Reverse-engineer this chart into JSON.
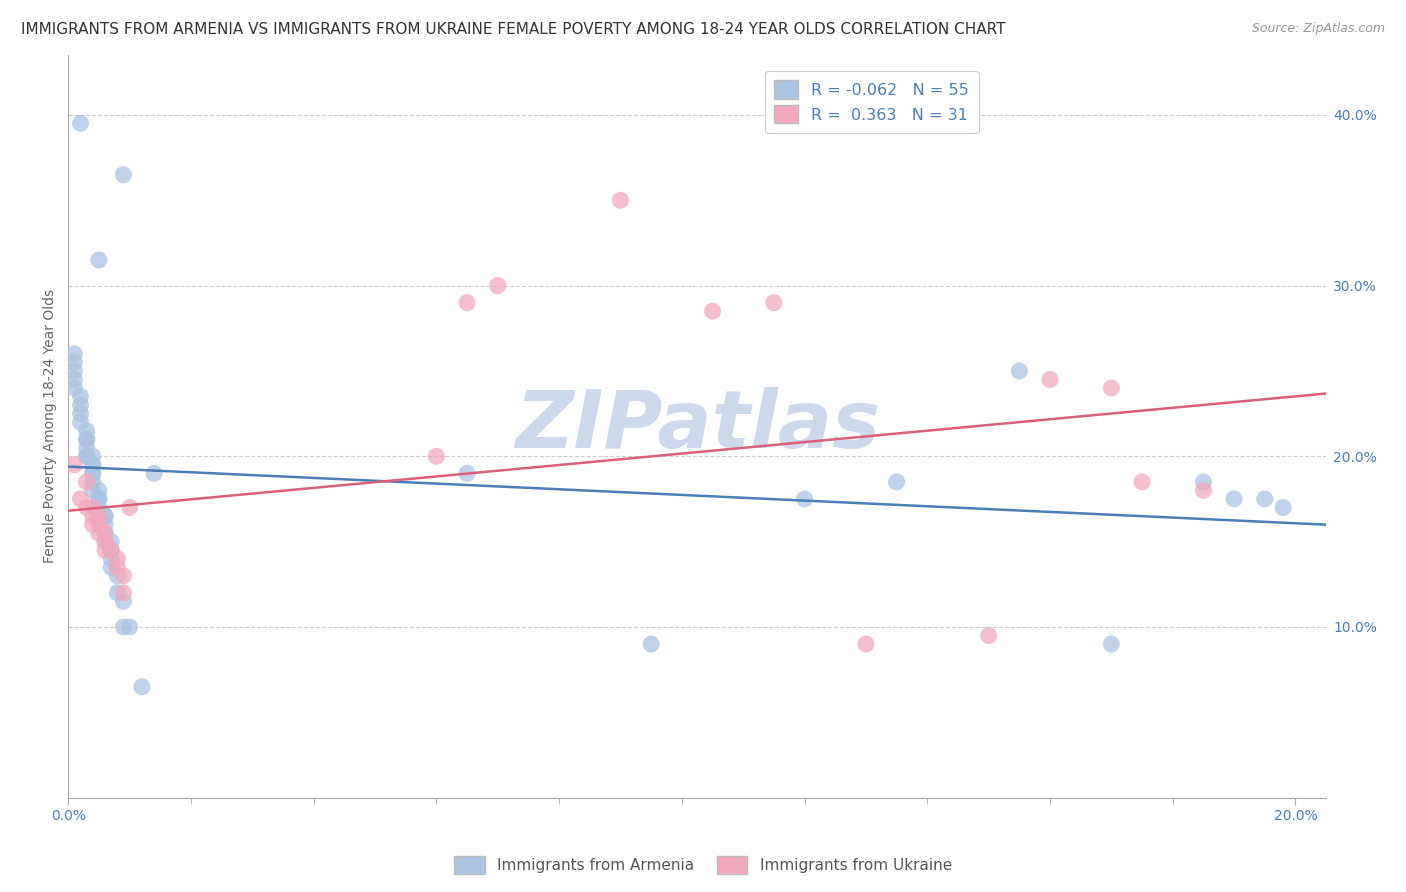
{
  "title": "IMMIGRANTS FROM ARMENIA VS IMMIGRANTS FROM UKRAINE FEMALE POVERTY AMONG 18-24 YEAR OLDS CORRELATION CHART",
  "source": "Source: ZipAtlas.com",
  "ylabel": "Female Poverty Among 18-24 Year Olds",
  "xlim": [
    0.0,
    0.205
  ],
  "ylim": [
    0.0,
    0.435
  ],
  "x_ticks": [
    0.0,
    0.2
  ],
  "x_tick_labels": [
    "0.0%",
    "20.0%"
  ],
  "y_ticks_right": [
    0.1,
    0.2,
    0.3,
    0.4
  ],
  "y_tick_labels_right": [
    "10.0%",
    "20.0%",
    "30.0%",
    "40.0%"
  ],
  "legend_labels": [
    "Immigrants from Armenia",
    "Immigrants from Ukraine"
  ],
  "color_armenia": "#aac4e2",
  "color_ukraine": "#f2a8bc",
  "color_line_armenia": "#4a7eb5",
  "color_line_ukraine": "#d9607a",
  "R_armenia": -0.062,
  "N_armenia": 55,
  "R_ukraine": 0.363,
  "N_ukraine": 31,
  "armenia_x": [
    0.002,
    0.009,
    0.005,
    0.001,
    0.001,
    0.001,
    0.001,
    0.001,
    0.002,
    0.002,
    0.002,
    0.002,
    0.003,
    0.003,
    0.003,
    0.003,
    0.003,
    0.003,
    0.004,
    0.004,
    0.004,
    0.004,
    0.004,
    0.004,
    0.004,
    0.005,
    0.005,
    0.005,
    0.005,
    0.006,
    0.006,
    0.006,
    0.006,
    0.006,
    0.007,
    0.007,
    0.007,
    0.007,
    0.008,
    0.008,
    0.009,
    0.009,
    0.01,
    0.012,
    0.014,
    0.065,
    0.095,
    0.12,
    0.135,
    0.155,
    0.17,
    0.185,
    0.19,
    0.195,
    0.198
  ],
  "armenia_y": [
    0.395,
    0.365,
    0.315,
    0.26,
    0.255,
    0.25,
    0.245,
    0.24,
    0.235,
    0.23,
    0.225,
    0.22,
    0.215,
    0.21,
    0.21,
    0.205,
    0.2,
    0.2,
    0.2,
    0.195,
    0.195,
    0.19,
    0.19,
    0.185,
    0.18,
    0.18,
    0.175,
    0.175,
    0.17,
    0.165,
    0.165,
    0.16,
    0.155,
    0.15,
    0.15,
    0.145,
    0.14,
    0.135,
    0.13,
    0.12,
    0.115,
    0.1,
    0.1,
    0.065,
    0.19,
    0.19,
    0.09,
    0.175,
    0.185,
    0.25,
    0.09,
    0.185,
    0.175,
    0.175,
    0.17
  ],
  "ukraine_x": [
    0.001,
    0.002,
    0.003,
    0.003,
    0.004,
    0.004,
    0.004,
    0.005,
    0.005,
    0.005,
    0.006,
    0.006,
    0.006,
    0.007,
    0.008,
    0.008,
    0.009,
    0.009,
    0.01,
    0.06,
    0.065,
    0.07,
    0.09,
    0.105,
    0.115,
    0.13,
    0.15,
    0.16,
    0.17,
    0.175,
    0.185
  ],
  "ukraine_y": [
    0.195,
    0.175,
    0.185,
    0.17,
    0.17,
    0.165,
    0.16,
    0.165,
    0.16,
    0.155,
    0.155,
    0.15,
    0.145,
    0.145,
    0.14,
    0.135,
    0.13,
    0.12,
    0.17,
    0.2,
    0.29,
    0.3,
    0.35,
    0.285,
    0.29,
    0.09,
    0.095,
    0.245,
    0.24,
    0.185,
    0.18
  ],
  "background_color": "#ffffff",
  "grid_color": "#cccccc",
  "watermark": "ZIPatlas",
  "watermark_color": "#cdd8ea",
  "title_fontsize": 11,
  "source_fontsize": 9,
  "axis_label_fontsize": 10,
  "tick_fontsize": 10,
  "scatter_size": 150,
  "scatter_alpha": 0.75
}
